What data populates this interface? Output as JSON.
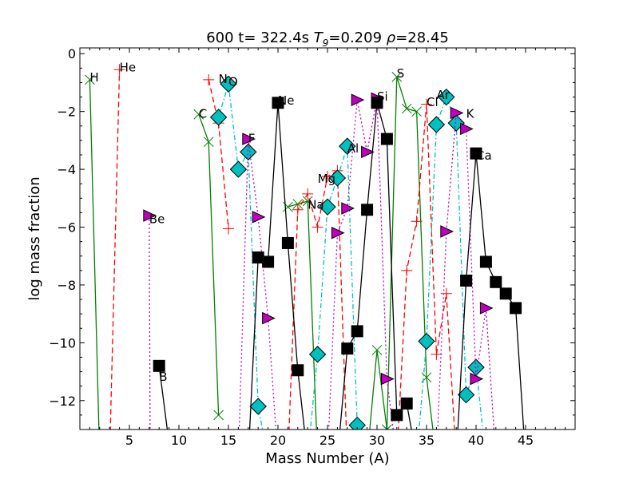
{
  "chart_data": {
    "type": "line",
    "title": {
      "prefix": "600 t= 322.4s ",
      "t9_symbol": "T",
      "t9_sub": "9",
      "t9_value": "=0.209 ",
      "rho_symbol": "ρ",
      "rho_value": "=28.45"
    },
    "xlabel": "Mass Number (A)",
    "ylabel": "log mass fraction",
    "xlim": [
      0,
      50
    ],
    "ylim": [
      -13,
      0.2
    ],
    "xticks": [
      5,
      10,
      15,
      20,
      25,
      30,
      35,
      40,
      45
    ],
    "yticks": [
      0,
      -2,
      -4,
      -6,
      -8,
      -10,
      -12
    ],
    "ytick_labels": [
      "0",
      "−2",
      "−4",
      "−6",
      "−8",
      "−10",
      "−12"
    ],
    "series": [
      {
        "style": "green-solid-x",
        "color": "#007f00",
        "marker": "x",
        "dash": "",
        "lines": [
          {
            "x": [
              1,
              2
            ],
            "y": [
              -0.9,
              -14
            ]
          },
          {
            "x": [
              12,
              13,
              14
            ],
            "y": [
              -2.1,
              -3.05,
              -12.5
            ]
          },
          {
            "x": [
              21,
              22,
              23,
              24
            ],
            "y": [
              -5.3,
              -5.2,
              -5.1,
              -14
            ]
          },
          {
            "x": [
              29,
              30,
              31,
              32,
              33,
              34,
              35,
              36
            ],
            "y": [
              -14,
              -10.25,
              -13,
              -0.8,
              -1.9,
              -2.0,
              -11.2,
              -14
            ]
          }
        ]
      },
      {
        "style": "red-dashed-plus",
        "color": "#ff0000",
        "marker": "+",
        "dash": "7,4",
        "lines": [
          {
            "x": [
              3,
              4
            ],
            "y": [
              -14,
              -0.55
            ]
          },
          {
            "x": [
              13,
              14,
              15
            ],
            "y": [
              -0.9,
              -2.4,
              -6.05
            ]
          },
          {
            "x": [
              21,
              22,
              23,
              24,
              25,
              26,
              27
            ],
            "y": [
              -14,
              -5.4,
              -4.85,
              -6.0,
              -4.25,
              -4.05,
              -14
            ]
          },
          {
            "x": [
              32,
              33,
              34,
              35,
              36,
              37,
              38
            ],
            "y": [
              -14,
              -7.5,
              -5.8,
              -1.75,
              -10.4,
              -8.3,
              -14
            ]
          }
        ]
      },
      {
        "style": "cyan-dashdot-diamond",
        "color": "#00bfbf",
        "marker": "diamond",
        "dash": "6,3,1.5,3",
        "lines": [
          {
            "x": [
              14,
              15,
              16,
              17,
              18,
              19
            ],
            "y": [
              -2.2,
              -1.05,
              -4.0,
              -3.4,
              -12.2,
              -14
            ]
          },
          {
            "x": [
              23,
              24,
              25,
              26,
              27,
              28,
              29
            ],
            "y": [
              -14,
              -10.4,
              -5.3,
              -4.3,
              -3.2,
              -12.85,
              -14
            ]
          },
          {
            "x": [
              34,
              35,
              36,
              37,
              38,
              39,
              40,
              41
            ],
            "y": [
              -14,
              -9.95,
              -2.45,
              -1.5,
              -2.4,
              -11.8,
              -10.85,
              -14
            ]
          }
        ]
      },
      {
        "style": "magenta-dotted-triangle",
        "color": "#bf00bf",
        "marker": "triangle-right",
        "dash": "2,3",
        "lines": [
          {
            "x": [
              7,
              7.1
            ],
            "y": [
              -5.6,
              -14
            ]
          },
          {
            "x": [
              16,
              17,
              18,
              19,
              20
            ],
            "y": [
              -14,
              -2.95,
              -5.65,
              -9.15,
              -14
            ]
          },
          {
            "x": [
              25,
              26,
              27,
              28,
              29,
              30,
              31,
              32
            ],
            "y": [
              -14,
              -6.2,
              -5.35,
              -1.6,
              -3.4,
              -1.55,
              -11.25,
              -14
            ]
          },
          {
            "x": [
              36,
              37,
              38,
              39,
              40,
              41,
              42
            ],
            "y": [
              -14,
              -6.15,
              -2.05,
              -2.6,
              -11.25,
              -8.8,
              -14
            ]
          }
        ]
      },
      {
        "style": "black-solid-square",
        "color": "#000000",
        "marker": "square",
        "dash": "",
        "lines": [
          {
            "x": [
              8,
              9.2
            ],
            "y": [
              -10.8,
              -14
            ]
          },
          {
            "x": [
              17,
              18,
              19,
              20,
              21,
              22,
              23
            ],
            "y": [
              -14,
              -7.05,
              -7.2,
              -1.7,
              -6.55,
              -10.95,
              -14
            ]
          },
          {
            "x": [
              26,
              27,
              28,
              29,
              30,
              31,
              32,
              33,
              34
            ],
            "y": [
              -14,
              -10.2,
              -9.6,
              -5.4,
              -1.7,
              -2.95,
              -12.5,
              -12.1,
              -14
            ]
          },
          {
            "x": [
              38,
              39,
              40,
              41,
              42,
              43,
              44,
              45
            ],
            "y": [
              -14,
              -7.85,
              -3.45,
              -7.2,
              -7.9,
              -8.3,
              -8.8,
              -14
            ]
          }
        ]
      }
    ],
    "element_labels": [
      {
        "text": "H",
        "x": 1,
        "y": -0.8
      },
      {
        "text": "He",
        "x": 4,
        "y": -0.45
      },
      {
        "text": "Be",
        "x": 7,
        "y": -5.7
      },
      {
        "text": "B",
        "x": 8,
        "y": -11.15
      },
      {
        "text": "C",
        "x": 12,
        "y": -2.05
      },
      {
        "text": "N",
        "x": 14,
        "y": -0.85
      },
      {
        "text": "O",
        "x": 15,
        "y": -0.95
      },
      {
        "text": "F",
        "x": 17,
        "y": -2.9
      },
      {
        "text": "Ne",
        "x": 20,
        "y": -1.6
      },
      {
        "text": "Na",
        "x": 23,
        "y": -5.2
      },
      {
        "text": "Mg",
        "x": 24,
        "y": -4.3
      },
      {
        "text": "Al",
        "x": 27,
        "y": -3.25
      },
      {
        "text": "Si",
        "x": 30,
        "y": -1.45
      },
      {
        "text": "S",
        "x": 32,
        "y": -0.65
      },
      {
        "text": "Cl",
        "x": 35,
        "y": -1.65
      },
      {
        "text": "Ar",
        "x": 36,
        "y": -1.4
      },
      {
        "text": "K",
        "x": 39,
        "y": -2.05
      },
      {
        "text": "Ca",
        "x": 40,
        "y": -3.5
      }
    ]
  }
}
